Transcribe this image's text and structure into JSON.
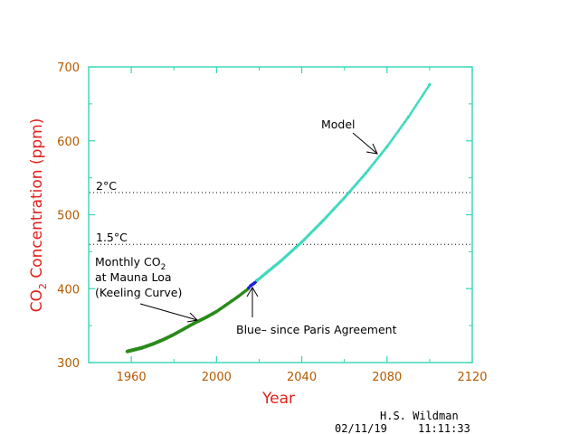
{
  "chart_data": {
    "type": "line",
    "xlabel": "Year",
    "ylabel_main": "CO",
    "ylabel_sub": "2",
    "ylabel_rest": " Concentration (ppm)",
    "xlim": [
      1940,
      2120
    ],
    "ylim": [
      300,
      700
    ],
    "x_ticks": [
      1960,
      2000,
      2040,
      2080,
      2120
    ],
    "y_ticks": [
      300,
      400,
      500,
      600,
      700
    ],
    "grid": false,
    "colors": {
      "frame": "#33d6b4",
      "tick_labels": "#b35a00",
      "axis_title": "#e0211c",
      "keeling": "#2a8a1a",
      "paris": "#1d1fd6",
      "model": "#3fd8be"
    },
    "series": [
      {
        "key": "keeling",
        "x": [
          1958,
          1965,
          1970,
          1975,
          1980,
          1985,
          1990,
          1995,
          2000,
          2005,
          2010,
          2015
        ],
        "y": [
          315,
          320,
          325,
          331,
          338,
          346,
          354,
          361,
          369,
          379,
          389,
          400
        ]
      },
      {
        "key": "paris",
        "x": [
          2015,
          2016,
          2017,
          2018,
          2019
        ],
        "y": [
          401,
          404,
          406,
          408,
          411
        ]
      },
      {
        "key": "model",
        "x": [
          2019,
          2030,
          2040,
          2050,
          2060,
          2070,
          2080,
          2090,
          2100
        ],
        "y": [
          411,
          437,
          463,
          492,
          523,
          556,
          592,
          632,
          676
        ]
      }
    ],
    "reference_lines": [
      {
        "y": 530,
        "label": "2°C"
      },
      {
        "y": 460,
        "label": "1.5°C"
      }
    ],
    "annotations": {
      "model": {
        "text": "Model"
      },
      "keeling": {
        "line1_main": "Monthly CO",
        "line1_sub": "2",
        "line2": "at Mauna Loa",
        "line3": "(Keeling Curve)"
      },
      "paris": {
        "text": "Blue– since Paris Agreement"
      }
    }
  },
  "footer": {
    "author": "H.S. Wildman",
    "date": "02/11/19",
    "time": "11:11:33"
  }
}
